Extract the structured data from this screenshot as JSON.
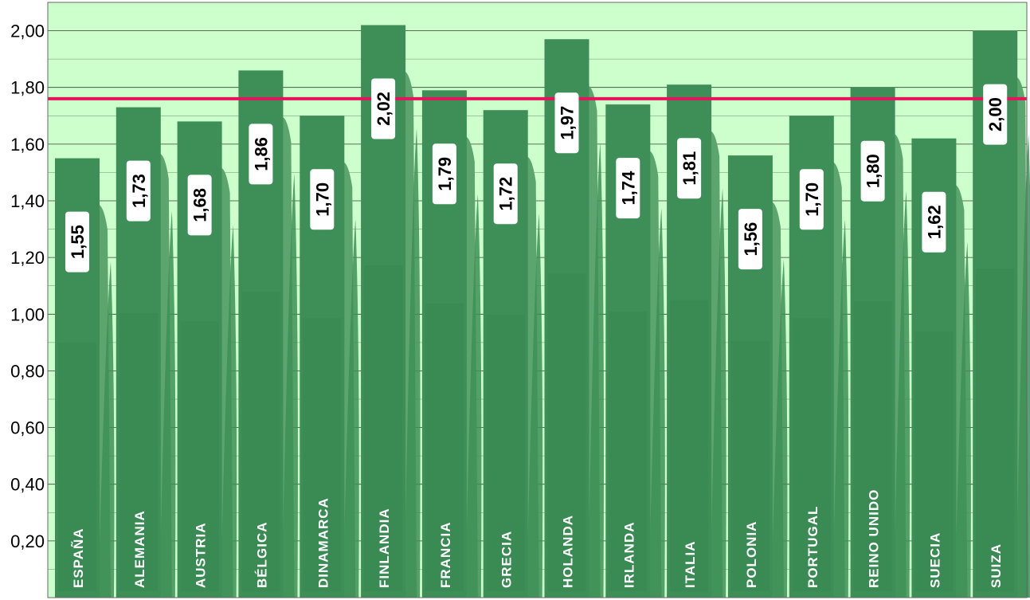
{
  "colors": {
    "background": "#ccffcc",
    "bar": "#3d8f57",
    "bar_fringe": "#5da56f",
    "grid": "#000000",
    "reference_line": "#e6125b",
    "label_box": "#ffffff",
    "country_text": "#ffffff",
    "value_text": "#000000",
    "axis_text": "#000000"
  },
  "chart_data": {
    "type": "bar",
    "title": "",
    "xlabel": "",
    "ylabel": "",
    "ylim": [
      0,
      2.1
    ],
    "yticks": [
      "2,00",
      "1,80",
      "1,60",
      "1,40",
      "1,20",
      "1,00",
      "0,80",
      "0,60",
      "0,40",
      "0,20"
    ],
    "ytick_values": [
      2.0,
      1.8,
      1.6,
      1.4,
      1.2,
      1.0,
      0.8,
      0.6,
      0.4,
      0.2
    ],
    "grid": true,
    "reference_line": 1.76,
    "categories": [
      "ESPAÑA",
      "ALEMANIA",
      "AUSTRIA",
      "BÉLGICA",
      "DINAMARCA",
      "FINLANDIA",
      "FRANCIA",
      "GRECIA",
      "HOLANDA",
      "IRLANDA",
      "ITALIA",
      "POLONIA",
      "PORTUGAL",
      "REINO UNIDO",
      "SUECIA",
      "SUIZA"
    ],
    "values": [
      1.55,
      1.73,
      1.68,
      1.86,
      1.7,
      2.02,
      1.79,
      1.72,
      1.97,
      1.74,
      1.81,
      1.56,
      1.7,
      1.8,
      1.62,
      2.0
    ],
    "value_labels": [
      "1,55",
      "1,73",
      "1,68",
      "1,86",
      "1,70",
      "2,02",
      "1,79",
      "1,72",
      "1,97",
      "1,74",
      "1,81",
      "1,56",
      "1,70",
      "1,80",
      "1,62",
      "2,00"
    ]
  }
}
